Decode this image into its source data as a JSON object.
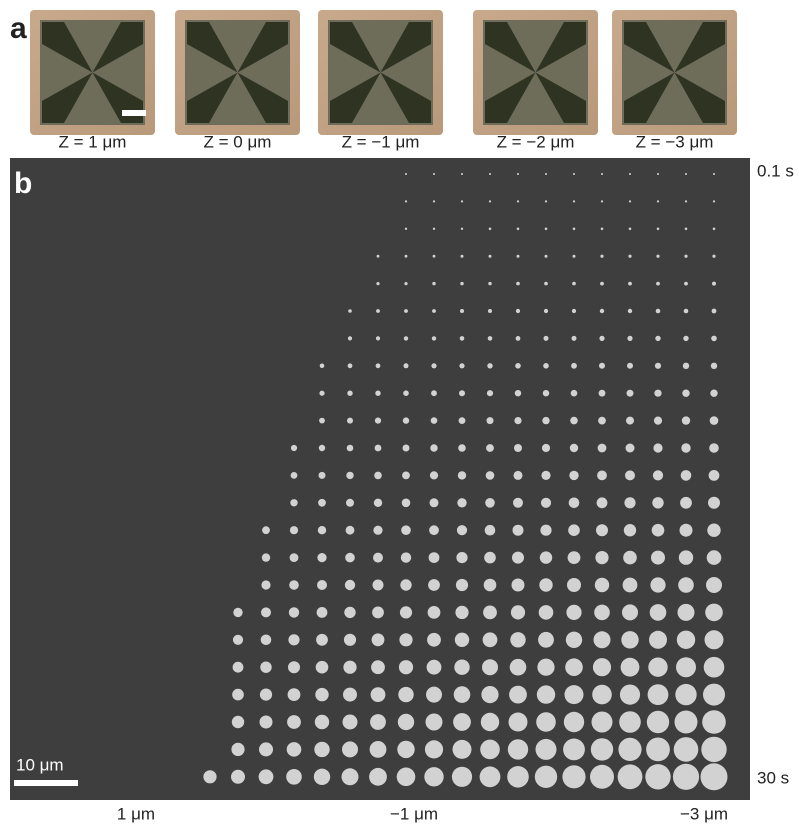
{
  "panel_a": {
    "label": "a",
    "images": [
      {
        "caption": "Z = 1 μm"
      },
      {
        "caption": "Z = 0 μm"
      },
      {
        "caption": "Z = −1 μm"
      },
      {
        "caption": "Z = −2 μm"
      },
      {
        "caption": "Z = −3 μm"
      }
    ]
  },
  "panel_b": {
    "label": "b",
    "time_start": "0.1 s",
    "time_end": "30 s",
    "scale_bar": "10 μm",
    "x_labels": [
      "1 μm",
      "−1 μm",
      "−3 μm"
    ]
  }
}
